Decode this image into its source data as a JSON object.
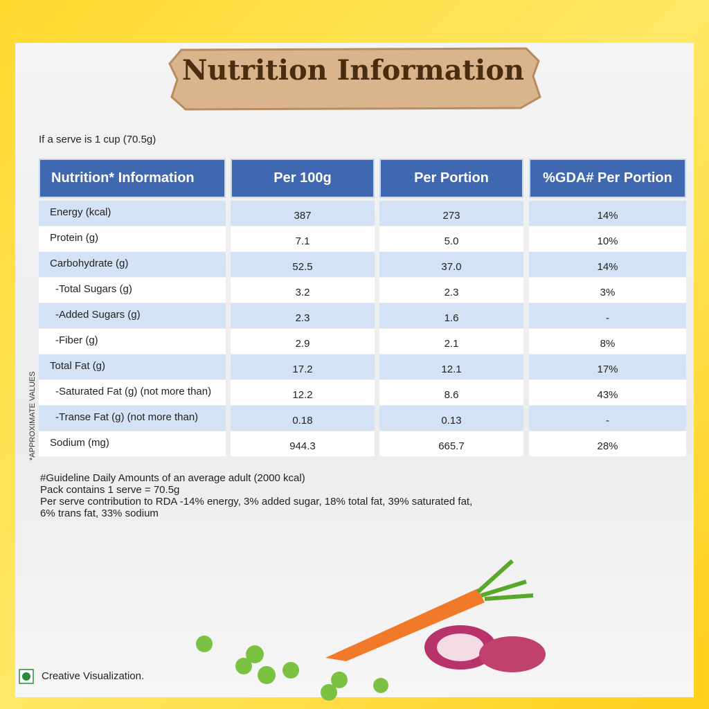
{
  "header": {
    "title": "Nutrition Information"
  },
  "serve_note": "If a serve is 1 cup (70.5g)",
  "table": {
    "columns": [
      "Nutrition* Information",
      "Per 100g",
      "Per Portion",
      "%GDA# Per Portion"
    ],
    "rows": [
      [
        "Energy (kcal)",
        "387",
        "273",
        "14%"
      ],
      [
        "Protein (g)",
        "7.1",
        "5.0",
        "10%"
      ],
      [
        "Carbohydrate (g)",
        "52.5",
        "37.0",
        "14%"
      ],
      [
        "-Total Sugars (g)",
        "3.2",
        "2.3",
        "3%"
      ],
      [
        "-Added Sugars (g)",
        "2.3",
        "1.6",
        "-"
      ],
      [
        "-Fiber (g)",
        "2.9",
        "2.1",
        "8%"
      ],
      [
        "Total Fat (g)",
        "17.2",
        "12.1",
        "17%"
      ],
      [
        "-Saturated Fat (g) (not more than)",
        "12.2",
        "8.6",
        "43%"
      ],
      [
        "-Transe Fat (g) (not more than)",
        "0.18",
        "0.13",
        "-"
      ],
      [
        "Sodium (mg)",
        "944.3",
        "665.7",
        "28%"
      ]
    ]
  },
  "side_note": "*APPROXIMATE VALUES",
  "footnotes": [
    "#Guideline Daily Amounts of an average adult (2000 kcal)",
    "Pack contains 1 serve = 70.5g",
    "Per serve contribution to RDA -14% energy, 3% added sugar, 18% total fat, 39% saturated fat, 6% trans fat, 33% sodium"
  ],
  "badge": "Creative Visualization."
}
